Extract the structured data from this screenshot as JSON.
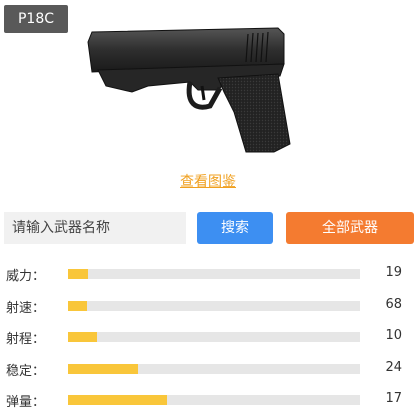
{
  "weapon": {
    "name": "P18C"
  },
  "view_link": "查看图鉴",
  "search": {
    "placeholder": "请输入武器名称",
    "button_label": "搜索"
  },
  "all_weapons_label": "全部武器",
  "colors": {
    "search_button": "#3d8ff2",
    "all_button": "#f47b30",
    "bar_fill": "#f9c63a",
    "link": "#f0a020"
  },
  "stats": [
    {
      "label": "威力：",
      "value": "19",
      "fraction": 0.07
    },
    {
      "label": "射速：",
      "value": "68",
      "fraction": 0.065
    },
    {
      "label": "射程：",
      "value": "10",
      "fraction": 0.1
    },
    {
      "label": "稳定：",
      "value": "24",
      "fraction": 0.24
    },
    {
      "label": "弹量：",
      "value": "17",
      "fraction": 0.34
    }
  ]
}
